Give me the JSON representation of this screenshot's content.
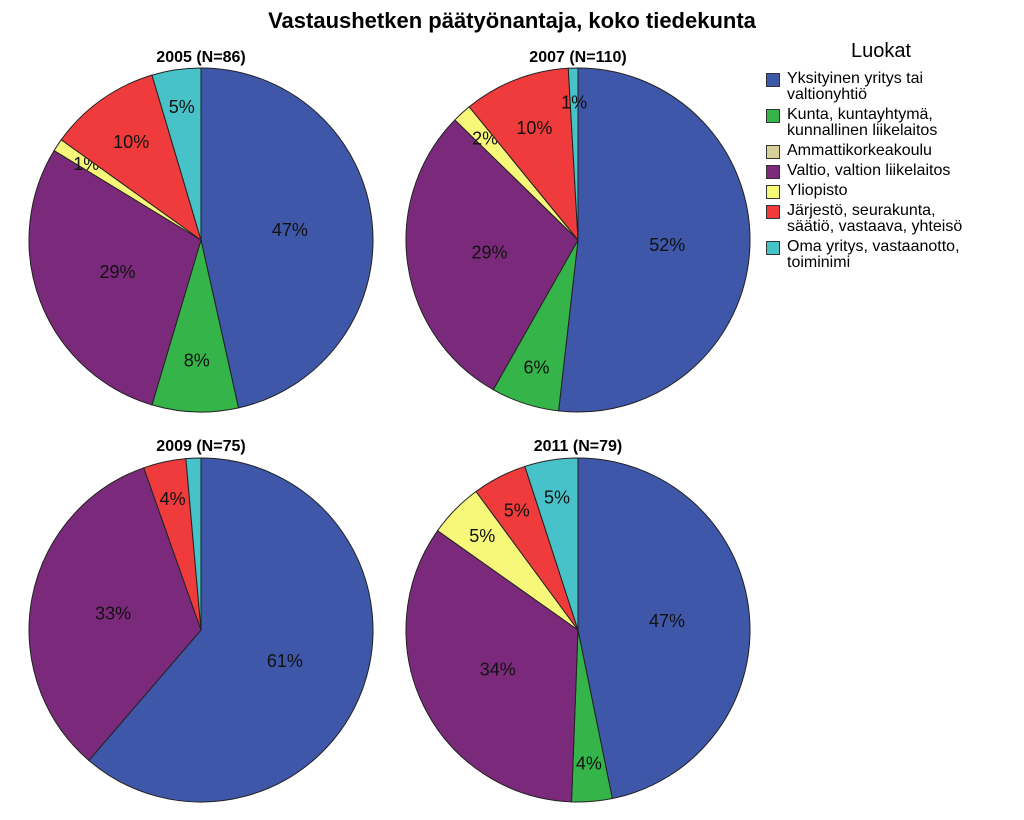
{
  "chart_data": {
    "type": "pie",
    "title": "Vastaushetken päätyönantaja, koko tiedekunta",
    "legend_title": "Luokat",
    "legend_placement": "right",
    "categories": [
      {
        "label_lines": [
          "Yksityinen yritys tai",
          "valtionyhtiö"
        ],
        "color": "#3f57a8"
      },
      {
        "label_lines": [
          "Kunta, kuntayhtymä,",
          "kunnallinen liikelaitos"
        ],
        "color": "#35b449"
      },
      {
        "label_lines": [
          "Ammattikorkeakoulu"
        ],
        "color": "#d9cf9a"
      },
      {
        "label_lines": [
          "Valtio, valtion liikelaitos"
        ],
        "color": "#7b2a7b"
      },
      {
        "label_lines": [
          "Yliopisto"
        ],
        "color": "#f7f77a"
      },
      {
        "label_lines": [
          "Järjestö, seurakunta,",
          "säätiö, vastaava, yhteisö"
        ],
        "color": "#ef3b3c"
      },
      {
        "label_lines": [
          "Oma yritys, vastaanotto,",
          "toiminimi"
        ],
        "color": "#47c2c8"
      }
    ],
    "pies": [
      {
        "title": "2005 (N=86)",
        "values": [
          46.5,
          8.1,
          0,
          29.1,
          1.2,
          10.5,
          4.6
        ],
        "labels": [
          "47%",
          "8%",
          "",
          "29%",
          "1%",
          "10%",
          "5%"
        ]
      },
      {
        "title": "2007 (N=110)",
        "values": [
          51.8,
          6.4,
          0,
          29.1,
          1.8,
          10.0,
          0.9
        ],
        "labels": [
          "52%",
          "6%",
          "",
          "29%",
          "2%",
          "10%",
          "1%"
        ]
      },
      {
        "title": "2009 (N=75)",
        "values": [
          61.3,
          0,
          0,
          33.3,
          0,
          4.0,
          1.4
        ],
        "labels": [
          "61%",
          "",
          "",
          "33%",
          "",
          "4%",
          ""
        ]
      },
      {
        "title": "2011 (N=79)",
        "values": [
          46.8,
          3.8,
          0,
          34.2,
          5.1,
          5.1,
          5.0
        ],
        "labels": [
          "47%",
          "4%",
          "",
          "34%",
          "5%",
          "5%",
          "5%"
        ]
      }
    ]
  }
}
